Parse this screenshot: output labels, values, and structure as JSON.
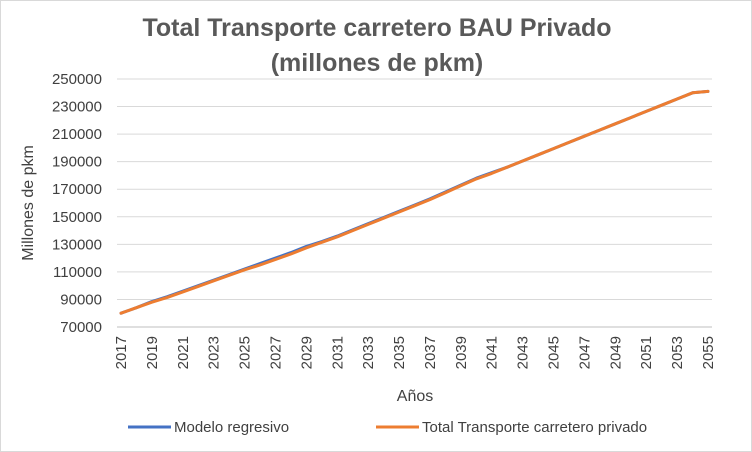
{
  "chart_data": {
    "type": "line",
    "title_line1": "Total Transporte carretero BAU Privado",
    "title_line2": "(millones de pkm)",
    "xlabel": "Años",
    "ylabel": "Millones de pkm",
    "ylim": [
      70000,
      250000
    ],
    "y_ticks": [
      70000,
      90000,
      110000,
      130000,
      150000,
      170000,
      190000,
      210000,
      230000,
      250000
    ],
    "x_tick_labels": [
      "2017",
      "2019",
      "2021",
      "2023",
      "2025",
      "2027",
      "2029",
      "2031",
      "2033",
      "2035",
      "2037",
      "2039",
      "2041",
      "2043",
      "2045",
      "2047",
      "2049",
      "2051",
      "2053",
      "2055"
    ],
    "grid": "horizontal",
    "legend_position": "bottom",
    "x": [
      2017,
      2018,
      2019,
      2020,
      2021,
      2022,
      2023,
      2024,
      2025,
      2026,
      2027,
      2028,
      2029,
      2030,
      2031,
      2032,
      2033,
      2034,
      2035,
      2036,
      2037,
      2038,
      2039,
      2040,
      2041,
      2042,
      2043,
      2044,
      2045,
      2046,
      2047,
      2048,
      2049,
      2050,
      2051,
      2052,
      2053,
      2054,
      2055
    ],
    "series": [
      {
        "name": "Modelo regresivo",
        "color": "#4472C4",
        "values": [
          80000,
          84000,
          88500,
          92000,
          96000,
          100000,
          104000,
          108000,
          112000,
          116000,
          120000,
          124000,
          128500,
          132000,
          136000,
          140500,
          145000,
          149500,
          154000,
          158500,
          163000,
          168000,
          173000,
          178000,
          182000,
          186000,
          190500,
          195000,
          199500,
          204000,
          208500,
          213000,
          217500,
          222000,
          226500,
          231000,
          235500,
          240000,
          241000
        ]
      },
      {
        "name": "Total Transporte carretero privado",
        "color": "#ED7D31",
        "values": [
          80000,
          84000,
          88000,
          91500,
          95500,
          99500,
          103500,
          107500,
          111500,
          115000,
          119000,
          123000,
          127500,
          131500,
          135500,
          140000,
          144500,
          149000,
          153500,
          158000,
          162500,
          167500,
          172500,
          177500,
          181500,
          186000,
          190500,
          195000,
          199500,
          204000,
          208500,
          213000,
          217500,
          222000,
          226500,
          231000,
          235500,
          240000,
          241000
        ]
      }
    ]
  }
}
